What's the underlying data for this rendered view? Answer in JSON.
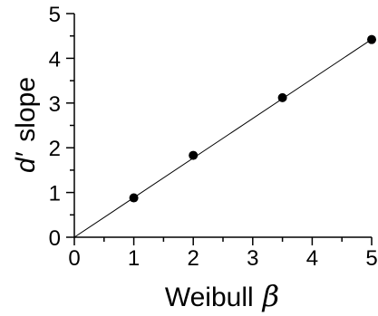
{
  "chart_data": {
    "type": "scatter",
    "xlabel": "Weibull β",
    "xlabel_text": "Weibull",
    "xlabel_symbol": "β",
    "ylabel": "d′ slope",
    "ylabel_symbol": "d′",
    "ylabel_text": "slope",
    "xlim": [
      0,
      5
    ],
    "ylim": [
      0,
      5
    ],
    "x_ticks": [
      "0",
      "1",
      "2",
      "3",
      "4",
      "5"
    ],
    "y_ticks": [
      "0",
      "1",
      "2",
      "3",
      "4",
      "5"
    ],
    "grid": false,
    "series": [
      {
        "points": [
          {
            "x": 1,
            "y": 0.88
          },
          {
            "x": 2,
            "y": 1.83
          },
          {
            "x": 3.5,
            "y": 3.12
          },
          {
            "x": 5,
            "y": 4.42
          }
        ]
      }
    ],
    "fit_line": {
      "slope": 0.885,
      "intercept": 0
    }
  }
}
